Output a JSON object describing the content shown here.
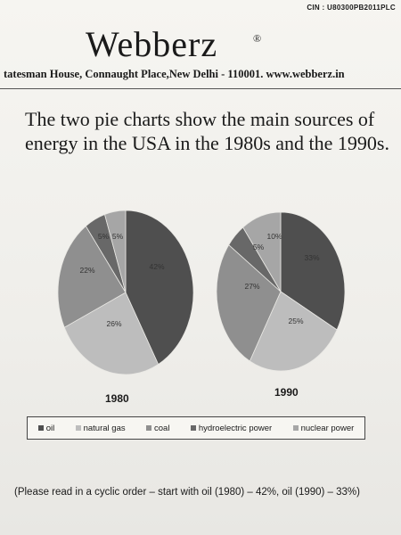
{
  "header": {
    "cin": "CIN : U80300PB2011PLC",
    "brand": "Webberz",
    "registered_mark": "®",
    "address": "tatesman House, Connaught Place,New Delhi - 110001. www.webberz.in"
  },
  "question": "The two pie charts show the main sources of energy in the USA in the 1980s and the 1990s.",
  "chart_data": [
    {
      "type": "pie",
      "title": "1980",
      "categories": [
        "oil",
        "natural gas",
        "coal",
        "hydroelectric power",
        "nuclear power"
      ],
      "values": [
        42,
        26,
        22,
        5,
        5
      ],
      "labels": [
        "42%",
        "26%",
        "22%",
        "5%",
        "5%"
      ]
    },
    {
      "type": "pie",
      "title": "1990",
      "categories": [
        "oil",
        "natural gas",
        "coal",
        "hydroelectric power",
        "nuclear power"
      ],
      "values": [
        33,
        25,
        27,
        5,
        10
      ],
      "labels": [
        "33%",
        "25%",
        "27%",
        "5%",
        "10%"
      ]
    }
  ],
  "legend": {
    "items": [
      {
        "label": "oil",
        "color": "#4f4f4f"
      },
      {
        "label": "natural gas",
        "color": "#bdbdbd"
      },
      {
        "label": "coal",
        "color": "#8f8f8f"
      },
      {
        "label": "hydroelectric power",
        "color": "#686868"
      },
      {
        "label": "nuclear power",
        "color": "#a6a6a6"
      }
    ]
  },
  "note": "(Please read in a cyclic order – start with oil (1980) – 42%, oil (1990) – 33%)"
}
